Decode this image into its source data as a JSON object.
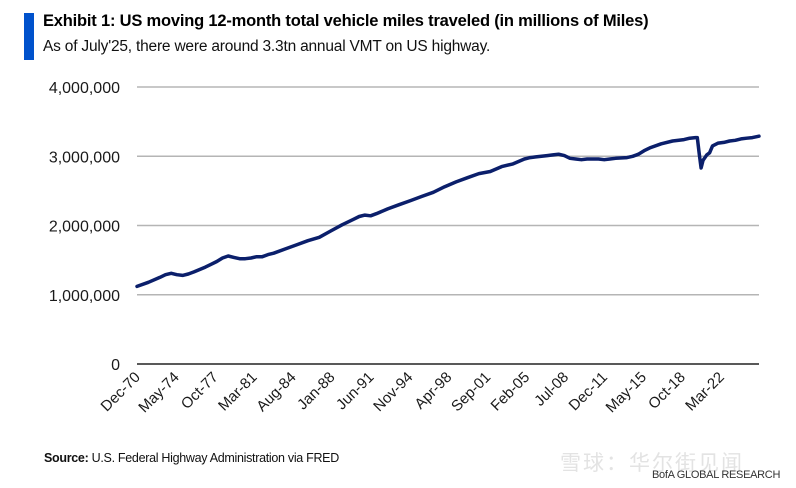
{
  "header": {
    "title": "Exhibit 1: US moving 12-month total vehicle miles traveled (in millions of Miles)",
    "subtitle": "As of July'25, there were around 3.3tn annual VMT on US highway.",
    "accent_color": "#0052CC"
  },
  "footer": {
    "source_label": "Source:",
    "source_text": "U.S. Federal Highway Administration via FRED",
    "watermark": "雪球：华尔街见闻",
    "brand": "BofA GLOBAL RESEARCH"
  },
  "chart_data": {
    "type": "line",
    "title": "Exhibit 1: US moving 12-month total vehicle miles traveled (in millions of Miles)",
    "xlabel": "",
    "ylabel": "",
    "ylim": [
      0,
      4000000
    ],
    "yticks": [
      0,
      1000000,
      2000000,
      3000000,
      4000000
    ],
    "ytick_labels": [
      "0",
      "1,000,000",
      "2,000,000",
      "3,000,000",
      "4,000,000"
    ],
    "xlim": [
      "1970-12",
      "2025-07"
    ],
    "xtick_labels": [
      "Dec-70",
      "May-74",
      "Oct-77",
      "Mar-81",
      "Aug-84",
      "Jan-88",
      "Jun-91",
      "Nov-94",
      "Apr-98",
      "Sep-01",
      "Feb-05",
      "Jul-08",
      "Dec-11",
      "May-15",
      "Oct-18",
      "Mar-22"
    ],
    "grid": true,
    "legend": "none",
    "line_color": "#0B1F6B",
    "series": [
      {
        "name": "Moving 12-month total VMT (millions of miles)",
        "x": [
          "1970-12",
          "1971-12",
          "1972-12",
          "1973-06",
          "1973-12",
          "1974-06",
          "1974-12",
          "1975-06",
          "1975-12",
          "1976-12",
          "1977-06",
          "1977-12",
          "1978-06",
          "1978-12",
          "1979-06",
          "1979-12",
          "1980-06",
          "1980-12",
          "1981-06",
          "1981-12",
          "1982-06",
          "1982-12",
          "1983-12",
          "1984-12",
          "1985-12",
          "1986-12",
          "1987-12",
          "1988-12",
          "1989-12",
          "1990-06",
          "1990-12",
          "1991-06",
          "1991-12",
          "1992-12",
          "1993-12",
          "1994-12",
          "1995-12",
          "1996-12",
          "1997-12",
          "1998-12",
          "1999-12",
          "2000-12",
          "2001-12",
          "2002-12",
          "2003-12",
          "2004-12",
          "2005-06",
          "2005-12",
          "2006-12",
          "2007-06",
          "2007-12",
          "2008-06",
          "2008-12",
          "2009-06",
          "2009-12",
          "2010-06",
          "2010-12",
          "2011-06",
          "2011-12",
          "2012-06",
          "2012-12",
          "2013-12",
          "2014-06",
          "2014-12",
          "2015-06",
          "2015-12",
          "2016-12",
          "2017-12",
          "2018-12",
          "2019-06",
          "2019-12",
          "2020-02",
          "2020-04",
          "2020-06",
          "2020-08",
          "2020-12",
          "2021-03",
          "2021-06",
          "2021-12",
          "2022-06",
          "2022-12",
          "2023-06",
          "2023-12",
          "2024-06",
          "2024-12",
          "2025-07"
        ],
        "values": [
          1120000,
          1180000,
          1250000,
          1290000,
          1310000,
          1290000,
          1280000,
          1300000,
          1330000,
          1400000,
          1440000,
          1480000,
          1530000,
          1560000,
          1540000,
          1520000,
          1520000,
          1530000,
          1550000,
          1550000,
          1580000,
          1600000,
          1660000,
          1720000,
          1780000,
          1830000,
          1920000,
          2010000,
          2090000,
          2130000,
          2150000,
          2140000,
          2170000,
          2240000,
          2300000,
          2360000,
          2420000,
          2480000,
          2560000,
          2630000,
          2690000,
          2750000,
          2780000,
          2850000,
          2890000,
          2960000,
          2980000,
          2990000,
          3010000,
          3020000,
          3030000,
          3010000,
          2970000,
          2960000,
          2950000,
          2960000,
          2960000,
          2960000,
          2950000,
          2960000,
          2970000,
          2980000,
          3000000,
          3030000,
          3080000,
          3120000,
          3180000,
          3220000,
          3240000,
          3260000,
          3270000,
          3270000,
          3040000,
          2830000,
          2940000,
          3020000,
          3050000,
          3150000,
          3190000,
          3200000,
          3220000,
          3230000,
          3250000,
          3260000,
          3270000,
          3290000
        ]
      }
    ]
  }
}
